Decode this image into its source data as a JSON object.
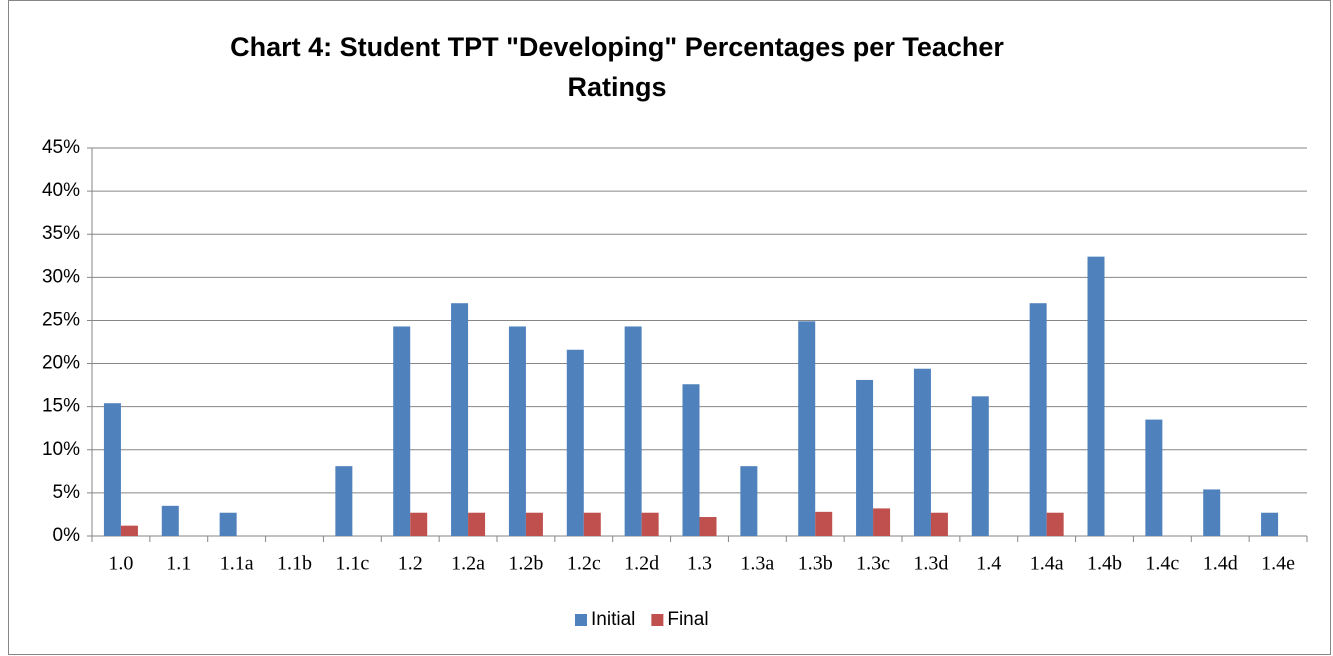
{
  "chart_data": {
    "type": "bar",
    "title": "Chart 4:  Student TPT \"Developing\" Percentages  per Teacher",
    "subtitle": "Ratings",
    "categories": [
      "1.0",
      "1.1",
      "1.1a",
      "1.1b",
      "1.1c",
      "1.2",
      "1.2a",
      "1.2b",
      "1.2c",
      "1.2d",
      "1.3",
      "1.3a",
      "1.3b",
      "1.3c",
      "1.3d",
      "1.4",
      "1.4a",
      "1.4b",
      "1.4c",
      "1.4d",
      "1.4e"
    ],
    "series": [
      {
        "name": "Initial",
        "color": "#4f81bd",
        "values": [
          15.4,
          3.5,
          2.7,
          0,
          8.1,
          24.3,
          27.0,
          24.3,
          21.6,
          24.3,
          17.6,
          8.1,
          24.9,
          18.1,
          19.4,
          16.2,
          27.0,
          32.4,
          13.5,
          5.4,
          2.7
        ]
      },
      {
        "name": "Final",
        "color": "#c0504d",
        "values": [
          1.2,
          0,
          0,
          0,
          0,
          2.7,
          2.7,
          2.7,
          2.7,
          2.7,
          2.2,
          0,
          2.8,
          3.2,
          2.7,
          0,
          2.7,
          0,
          0,
          0,
          0
        ]
      }
    ],
    "ylim": [
      0,
      45
    ],
    "yticks": [
      {
        "value": 0,
        "label": "0%"
      },
      {
        "value": 5,
        "label": "5%"
      },
      {
        "value": 10,
        "label": "10%"
      },
      {
        "value": 15,
        "label": "15%"
      },
      {
        "value": 20,
        "label": "20%"
      },
      {
        "value": 25,
        "label": "25%"
      },
      {
        "value": 30,
        "label": "30%"
      },
      {
        "value": 35,
        "label": "35%"
      },
      {
        "value": 40,
        "label": "40%"
      },
      {
        "value": 45,
        "label": "45%"
      }
    ],
    "grid": true,
    "legend": "bottom"
  }
}
